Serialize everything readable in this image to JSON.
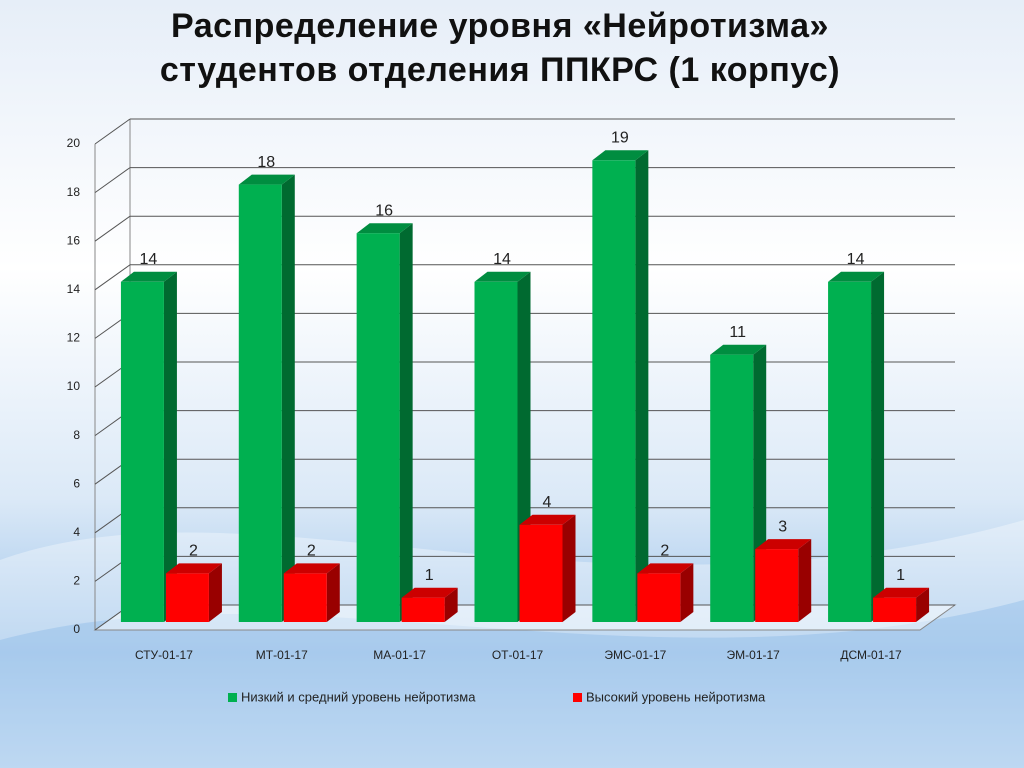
{
  "chart_data": {
    "type": "bar3d",
    "title": "Распределение уровня «Нейротизма» студентов отделения ППКРС (1 корпус)",
    "categories": [
      "СТУ-01-17",
      "МТ-01-17",
      "МА-01-17",
      "ОТ-01-17",
      "ЭМС-01-17",
      "ЭМ-01-17",
      "ДСМ-01-17"
    ],
    "series": [
      {
        "name": "Низкий и средний уровень нейротизма",
        "color": "#00b050",
        "values": [
          14,
          18,
          16,
          14,
          19,
          11,
          14
        ]
      },
      {
        "name": "Высокий уровень нейротизма",
        "color": "#ff0000",
        "values": [
          2,
          2,
          1,
          4,
          2,
          3,
          1
        ]
      }
    ],
    "ylim": [
      0,
      20
    ],
    "yticks": [
      0,
      2,
      4,
      6,
      8,
      10,
      12,
      14,
      16,
      18,
      20
    ],
    "grid": true,
    "legend": "bottom"
  }
}
